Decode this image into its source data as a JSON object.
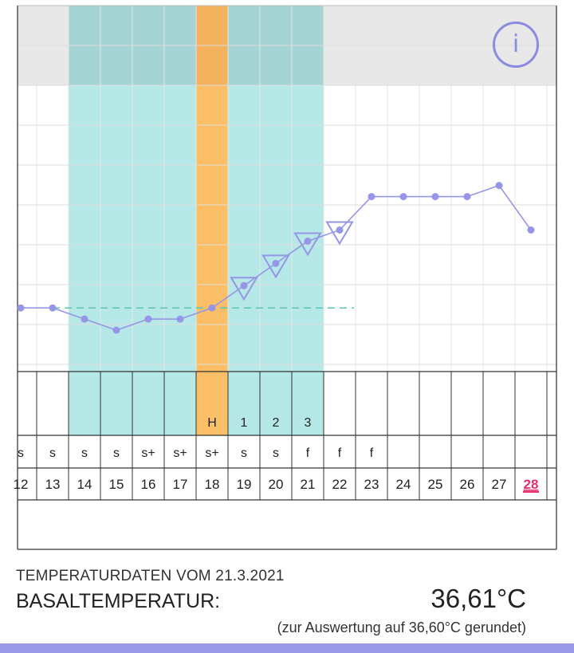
{
  "chart_data": {
    "type": "line",
    "title": "",
    "xlabel": "",
    "ylabel": "",
    "x": [
      "12",
      "13",
      "14",
      "15",
      "16",
      "17",
      "18",
      "19",
      "20",
      "21",
      "22",
      "23",
      "24",
      "25",
      "26",
      "27",
      "28"
    ],
    "series": [
      {
        "values": [
          36.4,
          36.4,
          36.39,
          36.38,
          36.39,
          36.39,
          36.4,
          36.42,
          36.44,
          36.46,
          36.47,
          36.5,
          36.5,
          36.5,
          36.5,
          36.51,
          36.47
        ]
      }
    ],
    "ylim": [
      36.35,
      36.6
    ],
    "coverline": {
      "value": 36.4,
      "from": "13",
      "to": "22"
    },
    "marked_days": [
      "19",
      "20",
      "21",
      "22"
    ],
    "fertile_window": {
      "from": "14",
      "to": "21"
    },
    "ovulation_day": "18",
    "cycle_marks": [
      {
        "day": "18",
        "label": "H"
      },
      {
        "day": "19",
        "label": "1"
      },
      {
        "day": "20",
        "label": "2"
      },
      {
        "day": "21",
        "label": "3"
      }
    ],
    "mucus_row": [
      {
        "day": "12",
        "label": "s"
      },
      {
        "day": "13",
        "label": "s"
      },
      {
        "day": "14",
        "label": "s"
      },
      {
        "day": "15",
        "label": "s"
      },
      {
        "day": "16",
        "label": "s+"
      },
      {
        "day": "17",
        "label": "s+"
      },
      {
        "day": "18",
        "label": "s+"
      },
      {
        "day": "19",
        "label": "s"
      },
      {
        "day": "20",
        "label": "s"
      },
      {
        "day": "21",
        "label": "f"
      },
      {
        "day": "22",
        "label": "f"
      },
      {
        "day": "23",
        "label": "f"
      }
    ],
    "current_day": "28",
    "grid": true,
    "colors": {
      "line": "#9696e6",
      "fertile": "#b6e8e8",
      "ovulation": "#fbbf68",
      "coverline": "#5bc3b5",
      "current_day": "#e5306a",
      "header_band": "#e8e8e8"
    }
  },
  "info_button": {
    "symbol": "i"
  },
  "footer": {
    "heading": "TEMPERATURDATEN VOM 21.3.2021",
    "label": "BASALTEMPERATUR:",
    "value": "36,61°C",
    "note": "(zur Auswertung auf 36,60°C gerundet)"
  }
}
